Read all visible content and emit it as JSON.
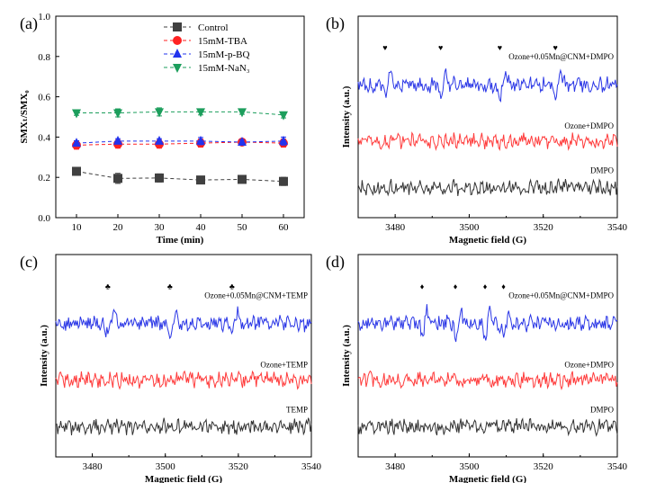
{
  "panel_labels": [
    "(a)",
    "(b)",
    "(c)",
    "(d)"
  ],
  "chart_data": [
    {
      "panel": "(a)",
      "type": "line",
      "xlabel": "Time (min)",
      "ylabel": "SMXₜ/SMX₀",
      "x": [
        10,
        20,
        30,
        40,
        50,
        60
      ],
      "xticks": [
        "10",
        "20",
        "30",
        "40",
        "50",
        "60"
      ],
      "yticks": [
        "0.0",
        "0.2",
        "0.4",
        "0.6",
        "0.8",
        "1.0"
      ],
      "xlim": [
        5,
        65
      ],
      "ylim": [
        0.0,
        1.0
      ],
      "grid": false,
      "legend_position": "top-right",
      "series": [
        {
          "name": "Control",
          "color": "#404040",
          "marker": "square",
          "values": [
            0.23,
            0.195,
            0.197,
            0.187,
            0.19,
            0.18
          ],
          "errors": [
            0.02,
            0.025,
            0.02,
            0.012,
            0.015,
            0.02
          ]
        },
        {
          "name": "15mM-TBA",
          "color": "#ff2222",
          "marker": "circle",
          "values": [
            0.36,
            0.365,
            0.365,
            0.37,
            0.375,
            0.37
          ],
          "errors": [
            0.02,
            0.02,
            0.02,
            0.02,
            0.012,
            0.02
          ]
        },
        {
          "name": "15mM-p-BQ",
          "color": "#2233ee",
          "marker": "triangle-up",
          "values": [
            0.37,
            0.38,
            0.38,
            0.38,
            0.375,
            0.38
          ],
          "errors": [
            0.012,
            0.012,
            0.012,
            0.018,
            0.012,
            0.02
          ]
        },
        {
          "name": "15mM-NaN₃",
          "color": "#1c9e5c",
          "marker": "triangle-down",
          "values": [
            0.52,
            0.52,
            0.525,
            0.525,
            0.525,
            0.51
          ],
          "errors": [
            0.012,
            0.02,
            0.02,
            0.015,
            0.012,
            0.015
          ]
        }
      ]
    },
    {
      "panel": "(b)",
      "type": "line",
      "xlabel": "Magnetic field (G)",
      "ylabel": "Intensity (a.u.)",
      "xlim": [
        3470,
        3540
      ],
      "xticks": [
        "3480",
        "3500",
        "3520",
        "3540"
      ],
      "series": [
        {
          "name": "Ozone+0.05Mn@CNM+DMPO",
          "color": "#2a36e6",
          "peaks": [
            3478,
            3493,
            3509,
            3524
          ],
          "peak_marker": "♥"
        },
        {
          "name": "Ozone+DMPO",
          "color": "#ff3b3b"
        },
        {
          "name": "DMPO",
          "color": "#333333"
        }
      ]
    },
    {
      "panel": "(c)",
      "type": "line",
      "xlabel": "Magnetic field (G)",
      "ylabel": "Intensity (a.u.)",
      "xlim": [
        3470,
        3540
      ],
      "xticks": [
        "3480",
        "3500",
        "3520",
        "3540"
      ],
      "series": [
        {
          "name": "Ozone+0.05Mn@CNM+TEMP",
          "color": "#2a36e6",
          "peaks": [
            3485,
            3502,
            3519
          ],
          "peak_marker": "♣"
        },
        {
          "name": "Ozone+TEMP",
          "color": "#ff3b3b"
        },
        {
          "name": "TEMP",
          "color": "#333333"
        }
      ]
    },
    {
      "panel": "(d)",
      "type": "line",
      "xlabel": "Magnetic field (G)",
      "ylabel": "Intensity (a.u.)",
      "xlim": [
        3470,
        3540
      ],
      "xticks": [
        "3480",
        "3500",
        "3520",
        "3540"
      ],
      "series": [
        {
          "name": "Ozone+0.05Mn@CNM+DMPO",
          "color": "#2a36e6",
          "peaks": [
            3488,
            3497,
            3505,
            3510
          ],
          "peak_marker": "♦"
        },
        {
          "name": "Ozone+DMPO",
          "color": "#ff3b3b"
        },
        {
          "name": "DMPO",
          "color": "#333333"
        }
      ]
    }
  ]
}
